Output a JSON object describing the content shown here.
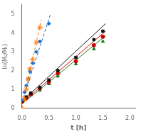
{
  "chart_data": {
    "type": "scatter",
    "xlabel": "t [h]",
    "ylabel": "ln(M₀/Mₜ)",
    "xlim": [
      0,
      2.1
    ],
    "ylim": [
      0,
      5.5
    ],
    "xticks": [
      {
        "value": 0,
        "label": "0.0"
      },
      0.5,
      {
        "value": 1,
        "label": "1.0"
      },
      1.5,
      {
        "value": 2,
        "label": "2.0"
      }
    ],
    "yticks": [
      0,
      1,
      2,
      3,
      4,
      5
    ],
    "grid": false,
    "series": [
      {
        "type": "line",
        "color": "#FF7700",
        "line_style": "dashed",
        "x": [
          0.0,
          0.36
        ],
        "values": [
          0.0,
          4.7
        ]
      },
      {
        "type": "scatter",
        "color": "#FF7700",
        "marker": "star",
        "x": [
          0.0,
          0.05,
          0.083,
          0.117,
          0.15,
          0.2,
          0.267,
          0.333
        ],
        "values": [
          0.0,
          0.5,
          1.0,
          1.55,
          2.1,
          2.6,
          3.5,
          4.3
        ]
      },
      {
        "type": "line",
        "color": "#1B6FD4",
        "line_style": "dashed",
        "x": [
          0.0,
          0.53
        ],
        "values": [
          0.3,
          5.0
        ]
      },
      {
        "type": "scatter",
        "color": "#1B6FD4",
        "marker": "diamond",
        "x": [
          0.0,
          0.05,
          0.083,
          0.117,
          0.15,
          0.2,
          0.267,
          0.333,
          0.5
        ],
        "values": [
          0.45,
          0.85,
          1.2,
          1.55,
          1.95,
          2.4,
          3.0,
          3.55,
          4.5
        ]
      },
      {
        "type": "line",
        "color": "#111111",
        "line_style": "solid",
        "x": [
          0.0,
          1.55
        ],
        "values": [
          0.35,
          4.5
        ]
      },
      {
        "type": "scatter",
        "color": "#111111",
        "marker": "square",
        "x": [
          0.0,
          0.083,
          0.167,
          0.333,
          0.5,
          0.667,
          1.0,
          1.333,
          1.5
        ],
        "values": [
          0.4,
          0.6,
          0.8,
          1.1,
          1.5,
          2.0,
          2.7,
          3.65,
          4.1
        ]
      },
      {
        "type": "line",
        "color": "#CC0000",
        "line_style": "solid",
        "x": [
          0.0,
          1.55
        ],
        "values": [
          0.28,
          4.1
        ]
      },
      {
        "type": "scatter",
        "color": "#CC0000",
        "marker": "circle",
        "x": [
          0.0,
          0.083,
          0.167,
          0.333,
          0.5,
          0.667,
          1.0,
          1.333,
          1.5
        ],
        "values": [
          0.35,
          0.55,
          0.75,
          1.05,
          1.4,
          1.85,
          2.5,
          3.35,
          3.8
        ]
      },
      {
        "type": "line",
        "color": "#1A7A1A",
        "line_style": "solid",
        "x": [
          0.0,
          1.55
        ],
        "values": [
          0.22,
          3.85
        ]
      },
      {
        "type": "scatter",
        "color": "#1A7A1A",
        "marker": "triangle",
        "x": [
          0.0,
          0.083,
          0.167,
          0.333,
          0.5,
          0.667,
          1.0,
          1.333,
          1.5
        ],
        "values": [
          0.3,
          0.5,
          0.7,
          0.95,
          1.3,
          1.7,
          2.35,
          3.15,
          3.55
        ]
      }
    ]
  }
}
